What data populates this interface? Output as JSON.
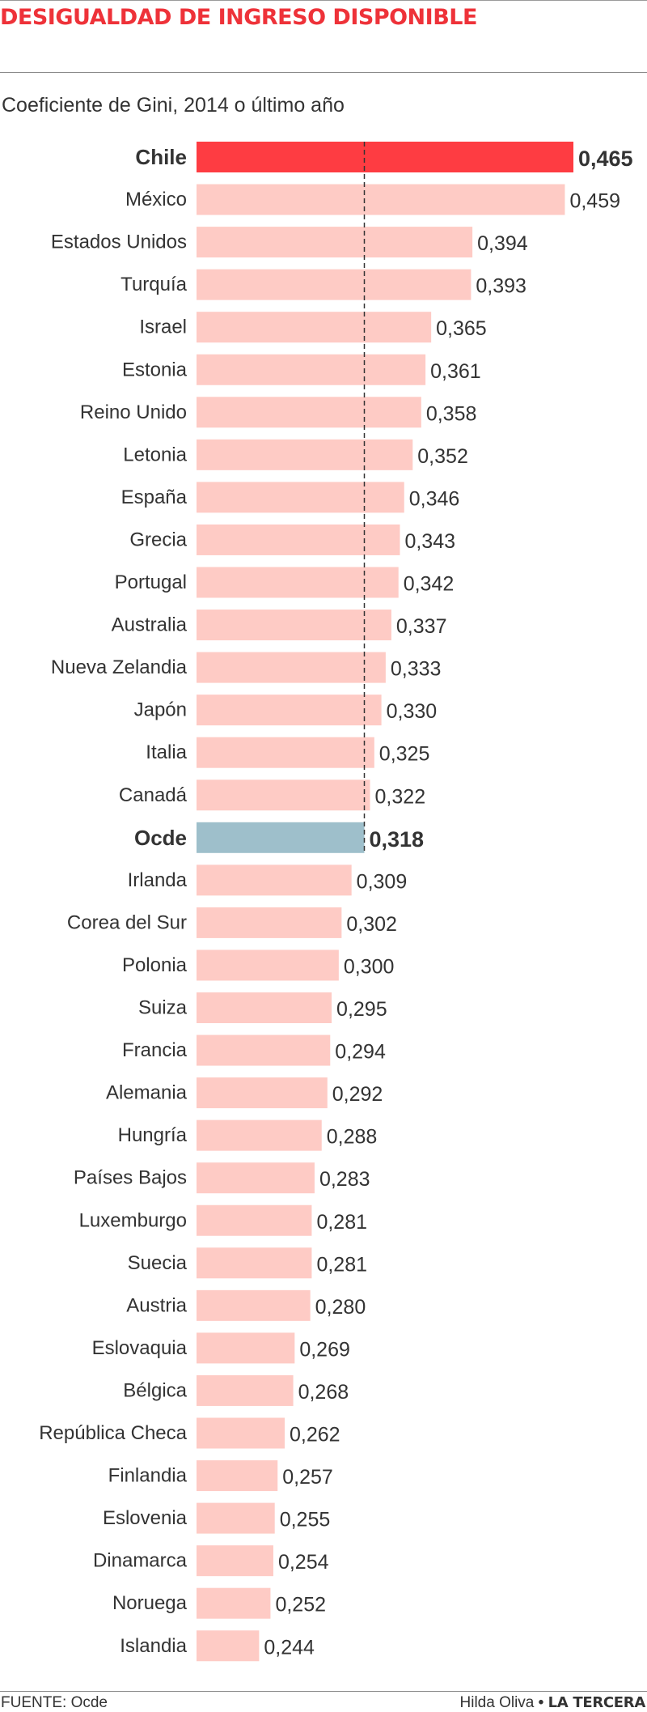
{
  "header": {
    "title": "DESIGUALDAD DE INGRESO DISPONIBLE",
    "subtitle": "Coeficiente de Gini, 2014 o último año"
  },
  "footer": {
    "source_label": "FUENTE:",
    "source_value": "Ocde",
    "author": "Hilda Oliva",
    "separator": "•",
    "publisher": "LA TERCERA"
  },
  "colors": {
    "title": "#ee3239",
    "highlight_bar": "#fe3c42",
    "average_bar": "#9ebfcb",
    "default_bar": "#fecbc5",
    "text": "#333333"
  },
  "chart_data": {
    "type": "bar",
    "orientation": "horizontal",
    "title": "DESIGUALDAD DE INGRESO DISPONIBLE",
    "subtitle": "Coeficiente de Gini, 2014 o último año",
    "xlim": [
      0.2,
      0.465
    ],
    "reference_line": {
      "value": 0.318,
      "style": "dashed"
    },
    "highlighted": [
      "Chile"
    ],
    "average_category": "Ocde",
    "categories": [
      "Chile",
      "México",
      "Estados Unidos",
      "Turquía",
      "Israel",
      "Estonia",
      "Reino Unido",
      "Letonia",
      "España",
      "Grecia",
      "Portugal",
      "Australia",
      "Nueva Zelandia",
      "Japón",
      "Italia",
      "Canadá",
      "Ocde",
      "Irlanda",
      "Corea del Sur",
      "Polonia",
      "Suiza",
      "Francia",
      "Alemania",
      "Hungría",
      "Países Bajos",
      "Luxemburgo",
      "Suecia",
      "Austria",
      "Eslovaquia",
      "Bélgica",
      "República Checa",
      "Finlandia",
      "Eslovenia",
      "Dinamarca",
      "Noruega",
      "Islandia"
    ],
    "values": [
      0.465,
      0.459,
      0.394,
      0.393,
      0.365,
      0.361,
      0.358,
      0.352,
      0.346,
      0.343,
      0.342,
      0.337,
      0.333,
      0.33,
      0.325,
      0.322,
      0.318,
      0.309,
      0.302,
      0.3,
      0.295,
      0.294,
      0.292,
      0.288,
      0.283,
      0.281,
      0.281,
      0.28,
      0.269,
      0.268,
      0.262,
      0.257,
      0.255,
      0.254,
      0.252,
      0.244
    ],
    "value_labels": [
      "0,465",
      "0,459",
      "0,394",
      "0,393",
      "0,365",
      "0,361",
      "0,358",
      "0,352",
      "0,346",
      "0,343",
      "0,342",
      "0,337",
      "0,333",
      "0,330",
      "0,325",
      "0,322",
      "0,318",
      "0,309",
      "0,302",
      "0,300",
      "0,295",
      "0,294",
      "0,292",
      "0,288",
      "0,283",
      "0,281",
      "0,281",
      "0,280",
      "0,269",
      "0,268",
      "0,262",
      "0,257",
      "0,255",
      "0,254",
      "0,252",
      "0,244"
    ]
  }
}
